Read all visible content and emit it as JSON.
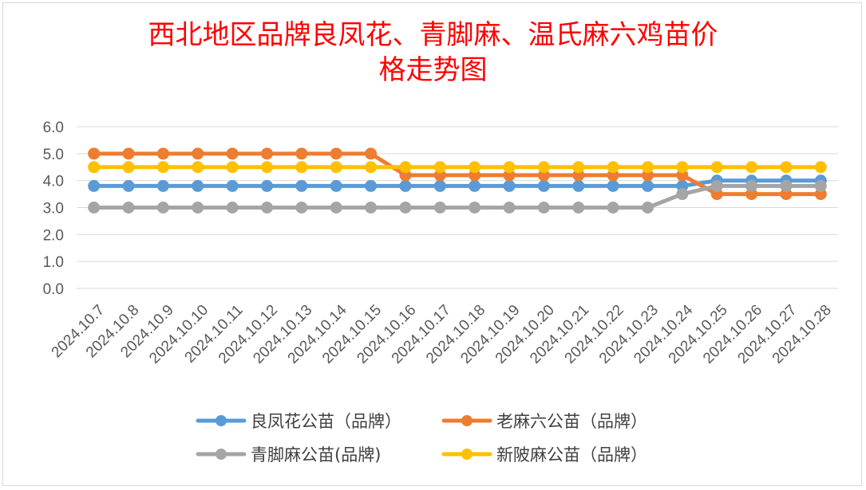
{
  "chart_data": {
    "type": "line",
    "title_lines": [
      "西北地区品牌良凤花、青脚麻、温氏麻六鸡苗价",
      "格走势图"
    ],
    "categories": [
      "2024.10.7",
      "2024.10.8",
      "2024.10.9",
      "2024.10.10",
      "2024.10.11",
      "2024.10.12",
      "2024.10.13",
      "2024.10.14",
      "2024.10.15",
      "2024.10.16",
      "2024.10.17",
      "2024.10.18",
      "2024.10.19",
      "2024.10.20",
      "2024.10.21",
      "2024.10.22",
      "2024.10.23",
      "2024.10.24",
      "2024.10.25",
      "2024.10.26",
      "2024.10.27",
      "2024.10.28"
    ],
    "y_ticks": [
      "0.0",
      "1.0",
      "2.0",
      "3.0",
      "4.0",
      "5.0",
      "6.0"
    ],
    "ylim": [
      0,
      6
    ],
    "grid": true,
    "legend_position": "bottom",
    "series": [
      {
        "name": "良凤花公苗（品牌）",
        "color": "#5b9bd5",
        "values": [
          3.8,
          3.8,
          3.8,
          3.8,
          3.8,
          3.8,
          3.8,
          3.8,
          3.8,
          3.8,
          3.8,
          3.8,
          3.8,
          3.8,
          3.8,
          3.8,
          3.8,
          3.8,
          4.0,
          4.0,
          4.0,
          4.0
        ]
      },
      {
        "name": "老麻六公苗（品牌）",
        "color": "#ed7d31",
        "values": [
          5.0,
          5.0,
          5.0,
          5.0,
          5.0,
          5.0,
          5.0,
          5.0,
          5.0,
          4.2,
          4.2,
          4.2,
          4.2,
          4.2,
          4.2,
          4.2,
          4.2,
          4.2,
          3.5,
          3.5,
          3.5,
          3.5
        ]
      },
      {
        "name": "青脚麻公苗(品牌)",
        "color": "#a5a5a5",
        "values": [
          3.0,
          3.0,
          3.0,
          3.0,
          3.0,
          3.0,
          3.0,
          3.0,
          3.0,
          3.0,
          3.0,
          3.0,
          3.0,
          3.0,
          3.0,
          3.0,
          3.0,
          3.5,
          3.8,
          3.8,
          3.8,
          3.8
        ]
      },
      {
        "name": "新陂麻公苗（品牌）",
        "color": "#ffc000",
        "values": [
          4.5,
          4.5,
          4.5,
          4.5,
          4.5,
          4.5,
          4.5,
          4.5,
          4.5,
          4.5,
          4.5,
          4.5,
          4.5,
          4.5,
          4.5,
          4.5,
          4.5,
          4.5,
          4.5,
          4.5,
          4.5,
          4.5
        ]
      }
    ]
  }
}
